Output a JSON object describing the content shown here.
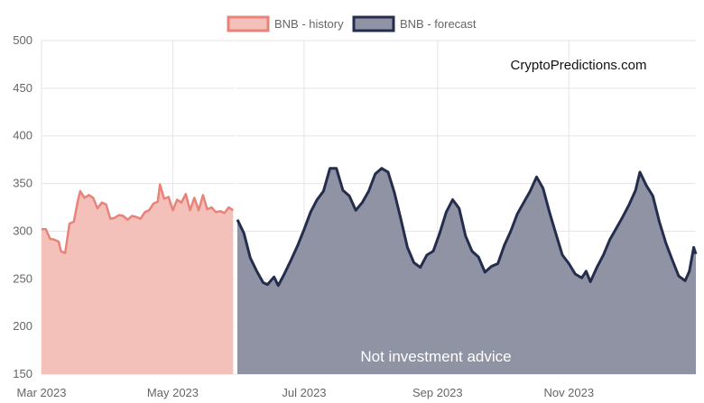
{
  "chart_data": {
    "type": "area",
    "title": "",
    "xlabel": "",
    "ylabel": "",
    "ylim": [
      150,
      500
    ],
    "y_ticks": [
      "500",
      "450",
      "400",
      "350",
      "300",
      "250",
      "200",
      "150"
    ],
    "x_tick_labels": [
      "Mar 2023",
      "May 2023",
      "Jul 2023",
      "Sep 2023",
      "Nov 2023"
    ],
    "x_tick_dates": [
      "2023-03-01",
      "2023-05-01",
      "2023-07-01",
      "2023-09-01",
      "2023-11-01"
    ],
    "x_range": [
      "2023-03-01",
      "2023-12-30"
    ],
    "grid": true,
    "legend_position": "top-center",
    "watermark": "CryptoPredictions.com",
    "annotation": "Not investment advice",
    "series": [
      {
        "name": "BNB - history",
        "fill": "#f4c0ba",
        "stroke": "#e8837a",
        "points": [
          [
            "2023-03-01",
            302
          ],
          [
            "2023-03-03",
            302
          ],
          [
            "2023-03-05",
            292
          ],
          [
            "2023-03-07",
            291
          ],
          [
            "2023-03-09",
            289
          ],
          [
            "2023-03-10",
            279
          ],
          [
            "2023-03-12",
            277
          ],
          [
            "2023-03-14",
            308
          ],
          [
            "2023-03-16",
            310
          ],
          [
            "2023-03-18",
            333
          ],
          [
            "2023-03-19",
            342
          ],
          [
            "2023-03-21",
            335
          ],
          [
            "2023-03-23",
            338
          ],
          [
            "2023-03-25",
            335
          ],
          [
            "2023-03-27",
            324
          ],
          [
            "2023-03-29",
            330
          ],
          [
            "2023-03-31",
            328
          ],
          [
            "2023-04-02",
            313
          ],
          [
            "2023-04-04",
            314
          ],
          [
            "2023-04-06",
            317
          ],
          [
            "2023-04-08",
            316
          ],
          [
            "2023-04-10",
            312
          ],
          [
            "2023-04-12",
            316
          ],
          [
            "2023-04-14",
            315
          ],
          [
            "2023-04-16",
            313
          ],
          [
            "2023-04-18",
            320
          ],
          [
            "2023-04-20",
            322
          ],
          [
            "2023-04-22",
            329
          ],
          [
            "2023-04-24",
            331
          ],
          [
            "2023-04-25",
            349
          ],
          [
            "2023-04-27",
            334
          ],
          [
            "2023-04-29",
            336
          ],
          [
            "2023-05-01",
            322
          ],
          [
            "2023-05-03",
            333
          ],
          [
            "2023-05-05",
            330
          ],
          [
            "2023-05-07",
            339
          ],
          [
            "2023-05-09",
            322
          ],
          [
            "2023-05-11",
            335
          ],
          [
            "2023-05-13",
            322
          ],
          [
            "2023-05-15",
            338
          ],
          [
            "2023-05-17",
            323
          ],
          [
            "2023-05-19",
            325
          ],
          [
            "2023-05-21",
            320
          ],
          [
            "2023-05-23",
            321
          ],
          [
            "2023-05-25",
            319
          ],
          [
            "2023-05-27",
            325
          ],
          [
            "2023-05-29",
            322
          ]
        ]
      },
      {
        "name": "BNB - forecast",
        "fill": "#8f93a4",
        "stroke": "#252d4d",
        "points": [
          [
            "2023-05-31",
            312
          ],
          [
            "2023-06-03",
            298
          ],
          [
            "2023-06-06",
            272
          ],
          [
            "2023-06-09",
            258
          ],
          [
            "2023-06-12",
            246
          ],
          [
            "2023-06-14",
            244
          ],
          [
            "2023-06-17",
            252
          ],
          [
            "2023-06-19",
            243
          ],
          [
            "2023-06-22",
            256
          ],
          [
            "2023-06-25",
            270
          ],
          [
            "2023-06-28",
            285
          ],
          [
            "2023-07-01",
            302
          ],
          [
            "2023-07-04",
            320
          ],
          [
            "2023-07-07",
            333
          ],
          [
            "2023-07-10",
            342
          ],
          [
            "2023-07-13",
            366
          ],
          [
            "2023-07-16",
            366
          ],
          [
            "2023-07-19",
            343
          ],
          [
            "2023-07-22",
            337
          ],
          [
            "2023-07-25",
            322
          ],
          [
            "2023-07-28",
            330
          ],
          [
            "2023-07-31",
            342
          ],
          [
            "2023-08-03",
            360
          ],
          [
            "2023-08-06",
            366
          ],
          [
            "2023-08-09",
            362
          ],
          [
            "2023-08-12",
            340
          ],
          [
            "2023-08-15",
            312
          ],
          [
            "2023-08-18",
            283
          ],
          [
            "2023-08-21",
            267
          ],
          [
            "2023-08-24",
            262
          ],
          [
            "2023-08-27",
            275
          ],
          [
            "2023-08-30",
            279
          ],
          [
            "2023-09-02",
            298
          ],
          [
            "2023-09-05",
            320
          ],
          [
            "2023-09-08",
            333
          ],
          [
            "2023-09-11",
            324
          ],
          [
            "2023-09-14",
            295
          ],
          [
            "2023-09-17",
            279
          ],
          [
            "2023-09-20",
            273
          ],
          [
            "2023-09-23",
            257
          ],
          [
            "2023-09-26",
            263
          ],
          [
            "2023-09-29",
            266
          ],
          [
            "2023-10-02",
            285
          ],
          [
            "2023-10-05",
            300
          ],
          [
            "2023-10-08",
            318
          ],
          [
            "2023-10-11",
            330
          ],
          [
            "2023-10-14",
            342
          ],
          [
            "2023-10-17",
            357
          ],
          [
            "2023-10-20",
            345
          ],
          [
            "2023-10-23",
            320
          ],
          [
            "2023-10-26",
            297
          ],
          [
            "2023-10-29",
            275
          ],
          [
            "2023-11-01",
            266
          ],
          [
            "2023-11-04",
            255
          ],
          [
            "2023-11-07",
            251
          ],
          [
            "2023-11-09",
            258
          ],
          [
            "2023-11-11",
            247
          ],
          [
            "2023-11-14",
            262
          ],
          [
            "2023-11-17",
            275
          ],
          [
            "2023-11-20",
            291
          ],
          [
            "2023-11-23",
            303
          ],
          [
            "2023-11-26",
            315
          ],
          [
            "2023-11-29",
            328
          ],
          [
            "2023-12-02",
            343
          ],
          [
            "2023-12-04",
            362
          ],
          [
            "2023-12-07",
            348
          ],
          [
            "2023-12-10",
            337
          ],
          [
            "2023-12-13",
            310
          ],
          [
            "2023-12-16",
            288
          ],
          [
            "2023-12-19",
            270
          ],
          [
            "2023-12-22",
            253
          ],
          [
            "2023-12-25",
            248
          ],
          [
            "2023-12-27",
            258
          ],
          [
            "2023-12-29",
            283
          ],
          [
            "2023-12-30",
            276
          ]
        ]
      }
    ]
  }
}
